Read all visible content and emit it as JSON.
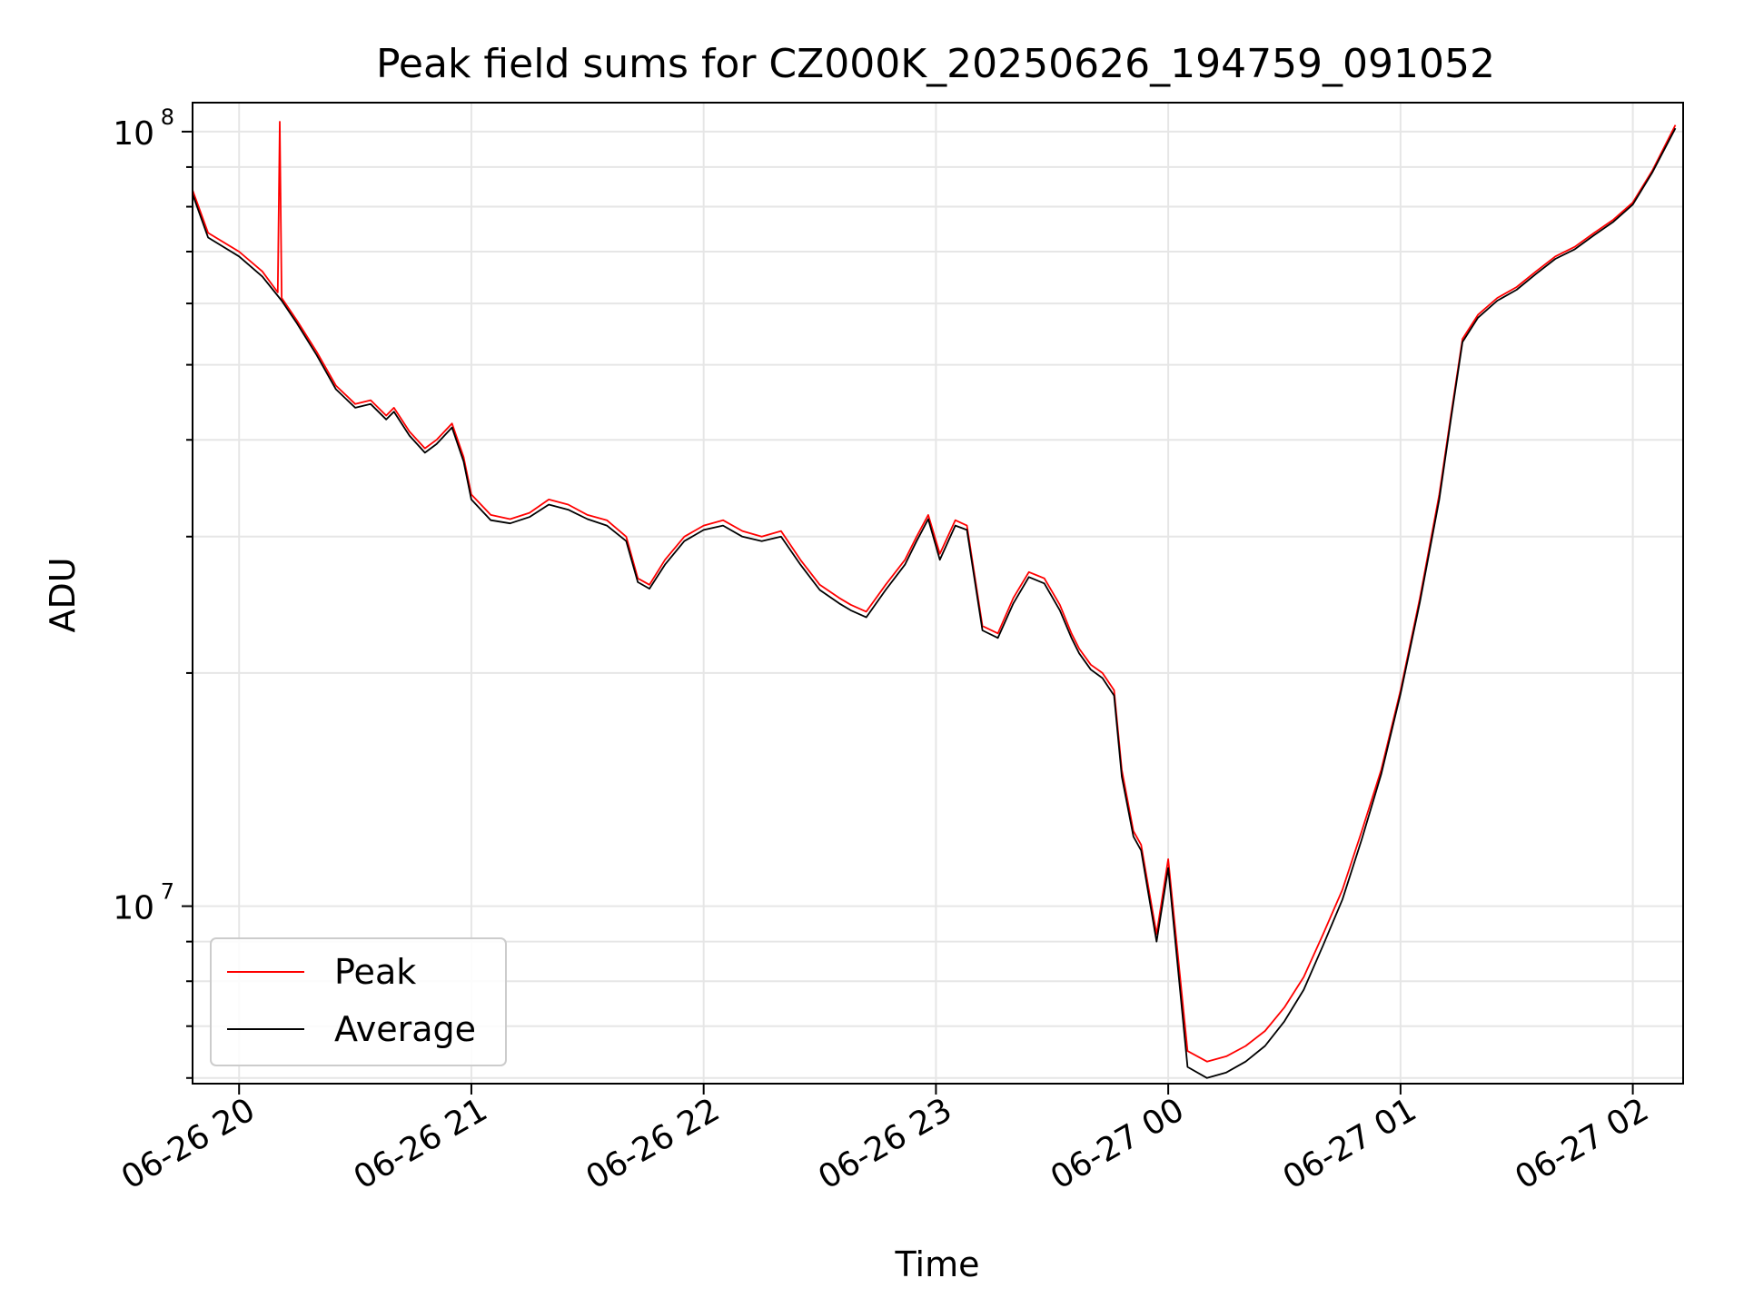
{
  "chart_data": {
    "type": "line",
    "title": "Peak field sums for CZ000K_20250626_194759_091052",
    "xlabel": "Time",
    "ylabel": "ADU",
    "yscale": "log",
    "ylim": [
      5900000,
      109000000
    ],
    "xlim": [
      "2025-06-26 19:47:59",
      "2025-06-27 02:13:00"
    ],
    "grid": true,
    "legend_position": "lower-left",
    "x_ticks": [
      {
        "value": "2025-06-26 20:00",
        "label": "06-26 20"
      },
      {
        "value": "2025-06-26 21:00",
        "label": "06-26 21"
      },
      {
        "value": "2025-06-26 22:00",
        "label": "06-26 22"
      },
      {
        "value": "2025-06-26 23:00",
        "label": "06-26 23"
      },
      {
        "value": "2025-06-27 00:00",
        "label": "06-27 00"
      },
      {
        "value": "2025-06-27 01:00",
        "label": "06-27 01"
      },
      {
        "value": "2025-06-27 02:00",
        "label": "06-27 02"
      }
    ],
    "y_ticks": [
      {
        "value": 10000000,
        "base": "10",
        "exp": "7"
      },
      {
        "value": 100000000,
        "base": "10",
        "exp": "8"
      }
    ],
    "series": [
      {
        "name": "Peak",
        "color": "#ff0000",
        "x": [
          "2025-06-26 19:48",
          "2025-06-26 19:52",
          "2025-06-26 20:00",
          "2025-06-26 20:06",
          "2025-06-26 20:10",
          "2025-06-26 20:10:30",
          "2025-06-26 20:11",
          "2025-06-26 20:15",
          "2025-06-26 20:20",
          "2025-06-26 20:25",
          "2025-06-26 20:30",
          "2025-06-26 20:34",
          "2025-06-26 20:38",
          "2025-06-26 20:40",
          "2025-06-26 20:44",
          "2025-06-26 20:48",
          "2025-06-26 20:51",
          "2025-06-26 20:55",
          "2025-06-26 20:58",
          "2025-06-26 21:00",
          "2025-06-26 21:05",
          "2025-06-26 21:10",
          "2025-06-26 21:15",
          "2025-06-26 21:20",
          "2025-06-26 21:25",
          "2025-06-26 21:30",
          "2025-06-26 21:35",
          "2025-06-26 21:40",
          "2025-06-26 21:43",
          "2025-06-26 21:46",
          "2025-06-26 21:50",
          "2025-06-26 21:55",
          "2025-06-26 22:00",
          "2025-06-26 22:05",
          "2025-06-26 22:10",
          "2025-06-26 22:15",
          "2025-06-26 22:20",
          "2025-06-26 22:25",
          "2025-06-26 22:30",
          "2025-06-26 22:35",
          "2025-06-26 22:38",
          "2025-06-26 22:42",
          "2025-06-26 22:47",
          "2025-06-26 22:52",
          "2025-06-26 22:55",
          "2025-06-26 22:58",
          "2025-06-26 23:01",
          "2025-06-26 23:05",
          "2025-06-26 23:08",
          "2025-06-26 23:12",
          "2025-06-26 23:16",
          "2025-06-26 23:20",
          "2025-06-26 23:24",
          "2025-06-26 23:28",
          "2025-06-26 23:32",
          "2025-06-26 23:35",
          "2025-06-26 23:37",
          "2025-06-26 23:40",
          "2025-06-26 23:43",
          "2025-06-26 23:46",
          "2025-06-26 23:48",
          "2025-06-26 23:51",
          "2025-06-26 23:53",
          "2025-06-26 23:55",
          "2025-06-26 23:57",
          "2025-06-27 00:00",
          "2025-06-27 00:05",
          "2025-06-27 00:10",
          "2025-06-27 00:15",
          "2025-06-27 00:20",
          "2025-06-27 00:25",
          "2025-06-27 00:30",
          "2025-06-27 00:35",
          "2025-06-27 00:40",
          "2025-06-27 00:45",
          "2025-06-27 00:50",
          "2025-06-27 00:55",
          "2025-06-27 01:00",
          "2025-06-27 01:05",
          "2025-06-27 01:10",
          "2025-06-27 01:13",
          "2025-06-27 01:16",
          "2025-06-27 01:20",
          "2025-06-27 01:25",
          "2025-06-27 01:30",
          "2025-06-27 01:35",
          "2025-06-27 01:40",
          "2025-06-27 01:45",
          "2025-06-27 01:50",
          "2025-06-27 01:55",
          "2025-06-27 02:00",
          "2025-06-27 02:05",
          "2025-06-27 02:11"
        ],
        "values": [
          84000000,
          74000000,
          70000000,
          66000000,
          62000000,
          103000000,
          61000000,
          57000000,
          52000000,
          47000000,
          44500000,
          45000000,
          43000000,
          44000000,
          41000000,
          39000000,
          40000000,
          42000000,
          38000000,
          34000000,
          32000000,
          31600000,
          32200000,
          33500000,
          33000000,
          32000000,
          31500000,
          30000000,
          26500000,
          26000000,
          28000000,
          30000000,
          31000000,
          31500000,
          30500000,
          30000000,
          30500000,
          28000000,
          26000000,
          25000000,
          24500000,
          24000000,
          26000000,
          28000000,
          30000000,
          32000000,
          28500000,
          31500000,
          31000000,
          23000000,
          22500000,
          25000000,
          27000000,
          26500000,
          24500000,
          22500000,
          21500000,
          20500000,
          20000000,
          19000000,
          15000000,
          12500000,
          12000000,
          10500000,
          9200000,
          11500000,
          6500000,
          6300000,
          6400000,
          6600000,
          6900000,
          7400000,
          8100000,
          9200000,
          10500000,
          12500000,
          15000000,
          19000000,
          25000000,
          34000000,
          43000000,
          54000000,
          58000000,
          61000000,
          63000000,
          66000000,
          69000000,
          71000000,
          74000000,
          77000000,
          81000000,
          89000000,
          102000000
        ]
      },
      {
        "name": "Average",
        "color": "#000000",
        "x": [
          "2025-06-26 19:48",
          "2025-06-26 19:52",
          "2025-06-26 20:00",
          "2025-06-26 20:06",
          "2025-06-26 20:11",
          "2025-06-26 20:15",
          "2025-06-26 20:20",
          "2025-06-26 20:25",
          "2025-06-26 20:30",
          "2025-06-26 20:34",
          "2025-06-26 20:38",
          "2025-06-26 20:40",
          "2025-06-26 20:44",
          "2025-06-26 20:48",
          "2025-06-26 20:51",
          "2025-06-26 20:55",
          "2025-06-26 20:58",
          "2025-06-26 21:00",
          "2025-06-26 21:05",
          "2025-06-26 21:10",
          "2025-06-26 21:15",
          "2025-06-26 21:20",
          "2025-06-26 21:25",
          "2025-06-26 21:30",
          "2025-06-26 21:35",
          "2025-06-26 21:40",
          "2025-06-26 21:43",
          "2025-06-26 21:46",
          "2025-06-26 21:50",
          "2025-06-26 21:55",
          "2025-06-26 22:00",
          "2025-06-26 22:05",
          "2025-06-26 22:10",
          "2025-06-26 22:15",
          "2025-06-26 22:20",
          "2025-06-26 22:25",
          "2025-06-26 22:30",
          "2025-06-26 22:35",
          "2025-06-26 22:38",
          "2025-06-26 22:42",
          "2025-06-26 22:47",
          "2025-06-26 22:52",
          "2025-06-26 22:55",
          "2025-06-26 22:58",
          "2025-06-26 23:01",
          "2025-06-26 23:05",
          "2025-06-26 23:08",
          "2025-06-26 23:12",
          "2025-06-26 23:16",
          "2025-06-26 23:20",
          "2025-06-26 23:24",
          "2025-06-26 23:28",
          "2025-06-26 23:32",
          "2025-06-26 23:35",
          "2025-06-26 23:37",
          "2025-06-26 23:40",
          "2025-06-26 23:43",
          "2025-06-26 23:46",
          "2025-06-26 23:48",
          "2025-06-26 23:51",
          "2025-06-26 23:53",
          "2025-06-26 23:55",
          "2025-06-26 23:57",
          "2025-06-27 00:00",
          "2025-06-27 00:05",
          "2025-06-27 00:10",
          "2025-06-27 00:15",
          "2025-06-27 00:20",
          "2025-06-27 00:25",
          "2025-06-27 00:30",
          "2025-06-27 00:35",
          "2025-06-27 00:40",
          "2025-06-27 00:45",
          "2025-06-27 00:50",
          "2025-06-27 00:55",
          "2025-06-27 01:00",
          "2025-06-27 01:05",
          "2025-06-27 01:10",
          "2025-06-27 01:13",
          "2025-06-27 01:16",
          "2025-06-27 01:20",
          "2025-06-27 01:25",
          "2025-06-27 01:30",
          "2025-06-27 01:35",
          "2025-06-27 01:40",
          "2025-06-27 01:45",
          "2025-06-27 01:50",
          "2025-06-27 01:55",
          "2025-06-27 02:00",
          "2025-06-27 02:05",
          "2025-06-27 02:11"
        ],
        "values": [
          83000000,
          73000000,
          69000000,
          65000000,
          60500000,
          56500000,
          51500000,
          46500000,
          44000000,
          44500000,
          42500000,
          43500000,
          40500000,
          38500000,
          39500000,
          41500000,
          37500000,
          33500000,
          31500000,
          31200000,
          31800000,
          33000000,
          32500000,
          31600000,
          31000000,
          29600000,
          26200000,
          25700000,
          27600000,
          29600000,
          30600000,
          31000000,
          30000000,
          29600000,
          30000000,
          27600000,
          25600000,
          24600000,
          24100000,
          23600000,
          25600000,
          27600000,
          29600000,
          31600000,
          28000000,
          31000000,
          30600000,
          22700000,
          22200000,
          24600000,
          26600000,
          26100000,
          24100000,
          22200000,
          21200000,
          20200000,
          19700000,
          18700000,
          14700000,
          12300000,
          11800000,
          10300000,
          9000000,
          11200000,
          6200000,
          6000000,
          6100000,
          6300000,
          6600000,
          7100000,
          7800000,
          8900000,
          10200000,
          12200000,
          14800000,
          18800000,
          24700000,
          33500000,
          42500000,
          53500000,
          57500000,
          60500000,
          62500000,
          65500000,
          68500000,
          70500000,
          73500000,
          76500000,
          80500000,
          88500000,
          101000000
        ]
      }
    ]
  }
}
